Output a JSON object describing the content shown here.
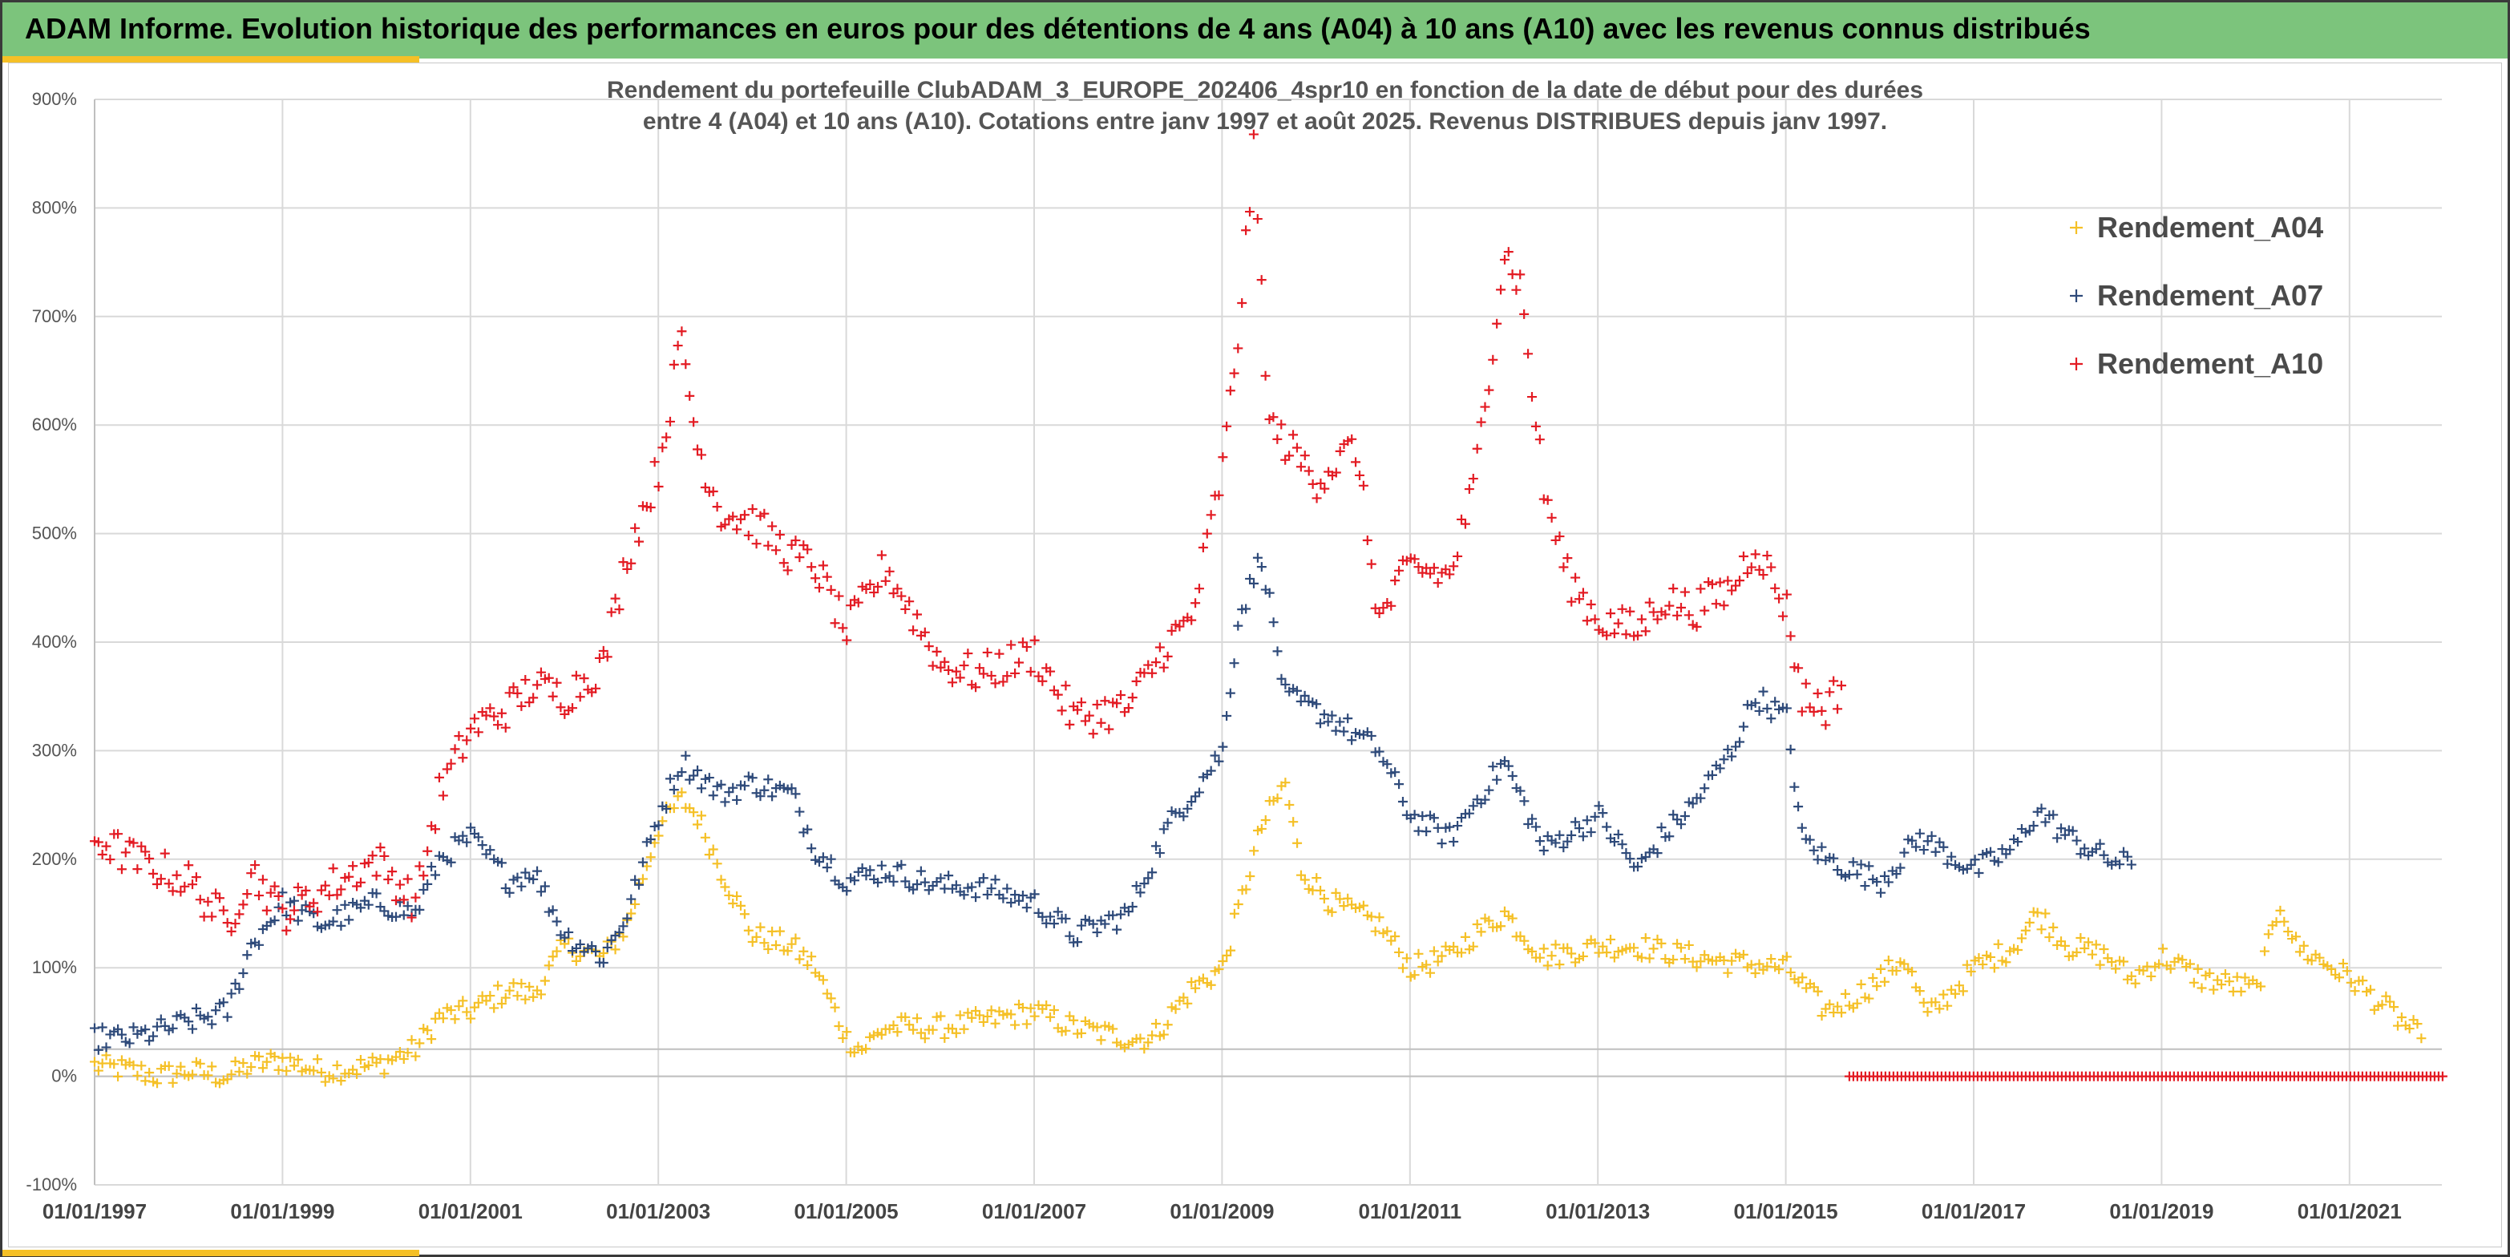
{
  "header": {
    "title": "ADAM Informe. Evolution historique des performances en euros pour des détentions de 4 ans (A04) à 10 ans (A10) avec les revenus connus distribués"
  },
  "colors": {
    "header_bg": "#7cc47c",
    "accent": "#f5c026",
    "A04": "#f5c026",
    "A07": "#2e4a7a",
    "A10": "#e31b23"
  },
  "chart_data": {
    "type": "scatter",
    "title_lines": [
      "Rendement du portefeuille ClubADAM_3_EUROPE_202406_4spr10  en fonction de la date de début pour des durées",
      "entre 4 (A04) et 10 ans (A10). Cotations entre janv 1997 et août 2025. Revenus DISTRIBUES depuis janv 1997."
    ],
    "xlabel": "",
    "ylabel": "",
    "x_range": [
      "1997-01-01",
      "2022-01-01"
    ],
    "ylim": [
      -100,
      900
    ],
    "y_ticks": [
      "-100%",
      "0%",
      "100%",
      "200%",
      "300%",
      "400%",
      "500%",
      "600%",
      "700%",
      "800%",
      "900%"
    ],
    "x_tick_labels": [
      "01/01/1997",
      "01/01/1999",
      "01/01/2001",
      "01/01/2003",
      "01/01/2005",
      "01/01/2007",
      "01/01/2009",
      "01/01/2011",
      "01/01/2013",
      "01/01/2015",
      "01/01/2017",
      "01/01/2019",
      "01/01/2021"
    ],
    "grid": true,
    "legend_position": "top-right",
    "marker": "+",
    "series": [
      {
        "name": "Rendement_A04",
        "color": "#f5c026",
        "points": [
          [
            "1997-01",
            10
          ],
          [
            "1997-06",
            5
          ],
          [
            "1997-09",
            0
          ],
          [
            "1998-01",
            5
          ],
          [
            "1998-06",
            0
          ],
          [
            "1998-09",
            10
          ],
          [
            "1999-01",
            15
          ],
          [
            "1999-06",
            5
          ],
          [
            "2000-01",
            10
          ],
          [
            "2000-06",
            25
          ],
          [
            "2000-09",
            55
          ],
          [
            "2001-01",
            60
          ],
          [
            "2001-06",
            80
          ],
          [
            "2001-09",
            75
          ],
          [
            "2002-01",
            120
          ],
          [
            "2002-06",
            110
          ],
          [
            "2002-09",
            140
          ],
          [
            "2003-01",
            230
          ],
          [
            "2003-04",
            255
          ],
          [
            "2003-06",
            240
          ],
          [
            "2003-09",
            190
          ],
          [
            "2004-01",
            130
          ],
          [
            "2004-06",
            120
          ],
          [
            "2004-09",
            100
          ],
          [
            "2005-01",
            35
          ],
          [
            "2005-03",
            25
          ],
          [
            "2005-06",
            45
          ],
          [
            "2006-01",
            45
          ],
          [
            "2006-06",
            50
          ],
          [
            "2007-01",
            60
          ],
          [
            "2007-06",
            45
          ],
          [
            "2008-01",
            35
          ],
          [
            "2008-04",
            35
          ],
          [
            "2008-09",
            80
          ],
          [
            "2009-01",
            100
          ],
          [
            "2009-06",
            230
          ],
          [
            "2009-09",
            270
          ],
          [
            "2009-11",
            190
          ],
          [
            "2010-03",
            160
          ],
          [
            "2010-09",
            140
          ],
          [
            "2011-01",
            100
          ],
          [
            "2011-06",
            110
          ],
          [
            "2011-09",
            130
          ],
          [
            "2012-01",
            150
          ],
          [
            "2012-06",
            110
          ],
          [
            "2013-01",
            120
          ],
          [
            "2013-06",
            120
          ],
          [
            "2014-01",
            110
          ],
          [
            "2014-06",
            105
          ],
          [
            "2015-01",
            100
          ],
          [
            "2015-06",
            60
          ],
          [
            "2015-09",
            70
          ],
          [
            "2016-01",
            90
          ],
          [
            "2016-04",
            110
          ],
          [
            "2016-07",
            55
          ],
          [
            "2017-01",
            100
          ],
          [
            "2017-06",
            120
          ],
          [
            "2017-09",
            150
          ],
          [
            "2018-01",
            120
          ],
          [
            "2018-06",
            110
          ],
          [
            "2018-09",
            90
          ],
          [
            "2019-01",
            110
          ],
          [
            "2019-06",
            90
          ],
          [
            "2020-01",
            80
          ],
          [
            "2020-04",
            160
          ],
          [
            "2020-06",
            120
          ],
          [
            "2021-01",
            90
          ],
          [
            "2021-06",
            60
          ],
          [
            "2021-10",
            35
          ]
        ],
        "zero_tail": null
      },
      {
        "name": "Rendement_A07",
        "color": "#2e4a7a",
        "points": [
          [
            "1997-01",
            35
          ],
          [
            "1997-06",
            35
          ],
          [
            "1998-01",
            50
          ],
          [
            "1998-06",
            60
          ],
          [
            "1998-09",
            120
          ],
          [
            "1999-01",
            160
          ],
          [
            "1999-06",
            140
          ],
          [
            "2000-01",
            160
          ],
          [
            "2000-06",
            150
          ],
          [
            "2000-09",
            200
          ],
          [
            "2001-01",
            220
          ],
          [
            "2001-06",
            180
          ],
          [
            "2001-09",
            190
          ],
          [
            "2002-01",
            130
          ],
          [
            "2002-06",
            110
          ],
          [
            "2002-09",
            150
          ],
          [
            "2003-01",
            240
          ],
          [
            "2003-04",
            290
          ],
          [
            "2003-09",
            260
          ],
          [
            "2004-01",
            270
          ],
          [
            "2004-06",
            260
          ],
          [
            "2004-09",
            210
          ],
          [
            "2005-01",
            180
          ],
          [
            "2005-06",
            190
          ],
          [
            "2006-01",
            175
          ],
          [
            "2006-06",
            175
          ],
          [
            "2007-01",
            160
          ],
          [
            "2007-06",
            130
          ],
          [
            "2008-01",
            150
          ],
          [
            "2008-06",
            230
          ],
          [
            "2008-09",
            260
          ],
          [
            "2009-01",
            300
          ],
          [
            "2009-03",
            420
          ],
          [
            "2009-06",
            480
          ],
          [
            "2009-09",
            350
          ],
          [
            "2010-03",
            330
          ],
          [
            "2010-09",
            300
          ],
          [
            "2011-01",
            240
          ],
          [
            "2011-06",
            220
          ],
          [
            "2011-09",
            250
          ],
          [
            "2012-01",
            290
          ],
          [
            "2012-06",
            210
          ],
          [
            "2013-01",
            240
          ],
          [
            "2013-06",
            190
          ],
          [
            "2013-09",
            220
          ],
          [
            "2014-01",
            250
          ],
          [
            "2014-06",
            300
          ],
          [
            "2014-09",
            350
          ],
          [
            "2015-01",
            330
          ],
          [
            "2015-03",
            220
          ],
          [
            "2015-06",
            200
          ],
          [
            "2016-01",
            180
          ],
          [
            "2016-06",
            220
          ],
          [
            "2017-01",
            190
          ],
          [
            "2017-06",
            210
          ],
          [
            "2017-09",
            245
          ],
          [
            "2018-01",
            220
          ],
          [
            "2018-06",
            200
          ],
          [
            "2018-09",
            195
          ]
        ],
        "zero_tail": null
      },
      {
        "name": "Rendement_A10",
        "color": "#e31b23",
        "points": [
          [
            "1997-01",
            220
          ],
          [
            "1997-06",
            200
          ],
          [
            "1998-01",
            180
          ],
          [
            "1998-06",
            140
          ],
          [
            "1998-09",
            190
          ],
          [
            "1999-01",
            150
          ],
          [
            "1999-06",
            170
          ],
          [
            "2000-01",
            200
          ],
          [
            "2000-06",
            160
          ],
          [
            "2000-09",
            260
          ],
          [
            "2001-01",
            320
          ],
          [
            "2001-06",
            340
          ],
          [
            "2001-09",
            360
          ],
          [
            "2002-01",
            350
          ],
          [
            "2002-06",
            380
          ],
          [
            "2002-09",
            480
          ],
          [
            "2003-01",
            560
          ],
          [
            "2003-04",
            680
          ],
          [
            "2003-06",
            580
          ],
          [
            "2003-09",
            520
          ],
          [
            "2004-01",
            510
          ],
          [
            "2004-06",
            480
          ],
          [
            "2004-09",
            470
          ],
          [
            "2005-01",
            410
          ],
          [
            "2005-06",
            470
          ],
          [
            "2006-01",
            380
          ],
          [
            "2006-06",
            370
          ],
          [
            "2007-01",
            390
          ],
          [
            "2007-06",
            330
          ],
          [
            "2008-01",
            340
          ],
          [
            "2008-06",
            400
          ],
          [
            "2008-09",
            420
          ],
          [
            "2009-01",
            560
          ],
          [
            "2009-03",
            680
          ],
          [
            "2009-05",
            850
          ],
          [
            "2009-07",
            600
          ],
          [
            "2010-01",
            550
          ],
          [
            "2010-06",
            580
          ],
          [
            "2010-09",
            420
          ],
          [
            "2011-01",
            470
          ],
          [
            "2011-06",
            460
          ],
          [
            "2011-09",
            540
          ],
          [
            "2012-01",
            760
          ],
          [
            "2012-03",
            730
          ],
          [
            "2012-06",
            540
          ],
          [
            "2012-09",
            460
          ],
          [
            "2013-01",
            420
          ],
          [
            "2013-06",
            410
          ],
          [
            "2013-09",
            440
          ],
          [
            "2014-01",
            430
          ],
          [
            "2014-06",
            450
          ],
          [
            "2014-09",
            490
          ],
          [
            "2015-01",
            430
          ],
          [
            "2015-03",
            350
          ],
          [
            "2015-06",
            340
          ],
          [
            "2015-08",
            360
          ]
        ],
        "zero_tail": {
          "from": "2015-09",
          "to": "2022-01",
          "value": 0
        }
      }
    ]
  }
}
